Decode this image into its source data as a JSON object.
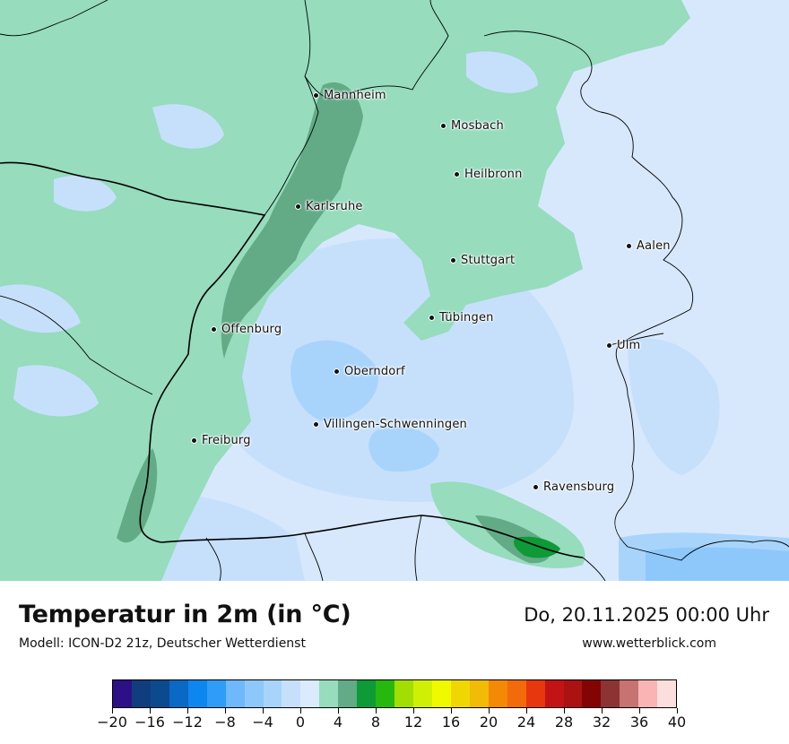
{
  "title": "Temperatur in 2m (in °C)",
  "subtitle": "Modell: ICON-D2 21z, Deutscher Wetterdienst",
  "datetime": "Do, 20.11.2025 00:00 Uhr",
  "website": "www.wetterblick.com",
  "cities": [
    {
      "name": "Mannheim",
      "id": "mannheim"
    },
    {
      "name": "Mosbach",
      "id": "mosbach"
    },
    {
      "name": "Heilbronn",
      "id": "heilbronn"
    },
    {
      "name": "Karlsruhe",
      "id": "karlsruhe"
    },
    {
      "name": "Aalen",
      "id": "aalen"
    },
    {
      "name": "Stuttgart",
      "id": "stuttgart"
    },
    {
      "name": "Tübingen",
      "id": "tuebingen"
    },
    {
      "name": "Offenburg",
      "id": "offenburg"
    },
    {
      "name": "Ulm",
      "id": "ulm"
    },
    {
      "name": "Oberndorf",
      "id": "oberndorf"
    },
    {
      "name": "Villingen-Schwenningen",
      "id": "villingen-schwenningen"
    },
    {
      "name": "Freiburg",
      "id": "freiburg"
    },
    {
      "name": "Ravensburg",
      "id": "ravensburg"
    }
  ],
  "colorbar": {
    "colors": [
      "#2d0f86",
      "#103d7e",
      "#0c4a8e",
      "#0a69c4",
      "#0e86ef",
      "#2f9df8",
      "#6fb8fb",
      "#8ec8fb",
      "#a8d4fc",
      "#c6e0fc",
      "#d9ebfd",
      "#96dcbd",
      "#62ab86",
      "#0e9a36",
      "#26b80f",
      "#a2dd04",
      "#cff004",
      "#f1f900",
      "#f0d703",
      "#f2bb08",
      "#f48906",
      "#f36a0b",
      "#e6370f",
      "#c21414",
      "#ab1212",
      "#840404",
      "#8c3434",
      "#c67372",
      "#f9b5b4",
      "#fcdedc"
    ],
    "tick_labels": [
      "−20",
      "−16",
      "−12",
      "−8",
      "−4",
      "0",
      "4",
      "8",
      "12",
      "16",
      "20",
      "24",
      "28",
      "32",
      "36",
      "40"
    ],
    "min": -20,
    "max": 40
  },
  "map_colors": {
    "very_light_blue": "#d7e8fc",
    "light_blue": "#c6e0fc",
    "mid_blue": "#a8d4fc",
    "blue": "#8ec8fb",
    "light_green": "#96dcbd",
    "dark_green": "#62ab86",
    "green": "#0e9a36"
  }
}
